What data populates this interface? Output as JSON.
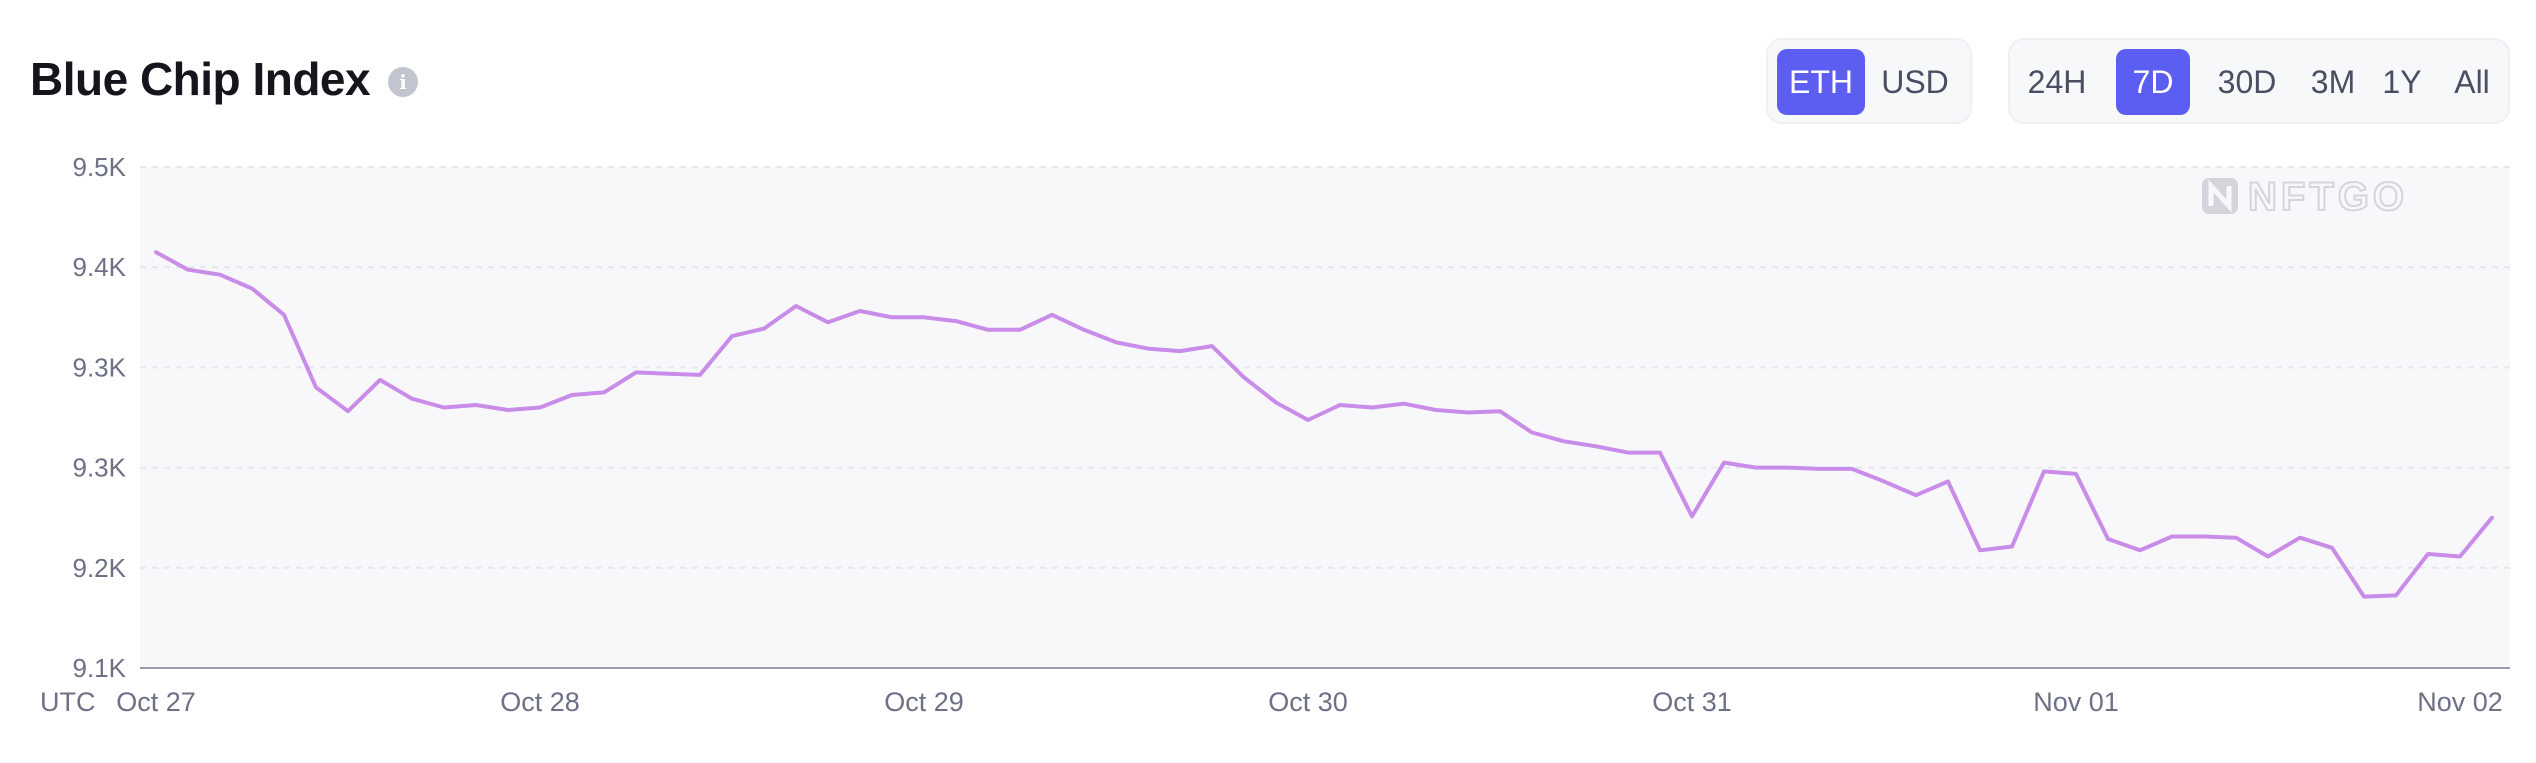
{
  "title": "Blue Chip Index",
  "info_icon": "info-icon",
  "currency_toggle": {
    "options": [
      "ETH",
      "USD"
    ],
    "selected": "ETH"
  },
  "range_toggle": {
    "options": [
      "24H",
      "7D",
      "30D",
      "3M",
      "1Y",
      "All"
    ],
    "selected": "7D"
  },
  "watermark": "NFTGO",
  "colors": {
    "accent": "#5b5ef0",
    "line": "#c98ce8",
    "plot_bg": "#f8f8fb",
    "grid": "#e6e6ec",
    "axis": "#9b9bb0",
    "tick_text": "#6e7086"
  },
  "chart_data": {
    "type": "line",
    "timezone_label": "UTC",
    "x_tick_labels": [
      "Oct 27",
      "Oct 28",
      "Oct 29",
      "Oct 30",
      "Oct 31",
      "Nov 01",
      "Nov 02"
    ],
    "y_tick_labels": [
      "9.1K",
      "9.2K",
      "9.3K",
      "9.3K",
      "9.4K",
      "9.5K"
    ],
    "ylim": [
      9100,
      9500
    ],
    "grid": true,
    "series": [
      {
        "values": [
          9432,
          9418,
          9414,
          9403,
          9382,
          9324,
          9305,
          9330,
          9315,
          9308,
          9310,
          9306,
          9308,
          9318,
          9320,
          9336,
          9335,
          9334,
          9365,
          9371,
          9389,
          9376,
          9385,
          9380,
          9380,
          9377,
          9370,
          9370,
          9382,
          9370,
          9360,
          9355,
          9353,
          9357,
          9332,
          9312,
          9298,
          9310,
          9308,
          9311,
          9306,
          9304,
          9305,
          9288,
          9281,
          9277,
          9272,
          9272,
          9221,
          9264,
          9260,
          9260,
          9259,
          9259,
          9249,
          9238,
          9249,
          9194,
          9197,
          9257,
          9255,
          9203,
          9194,
          9205,
          9205,
          9204,
          9189,
          9204,
          9196,
          9157,
          9158,
          9191,
          9189,
          9220
        ]
      }
    ]
  }
}
